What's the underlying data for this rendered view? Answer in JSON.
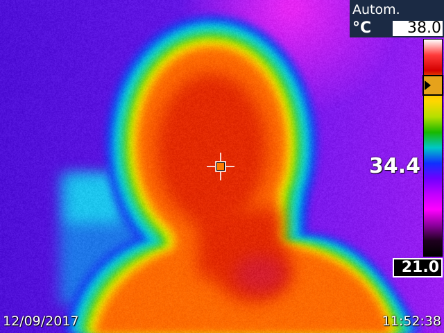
{
  "camera": {
    "mode": "Autom.",
    "unit": "°C",
    "scale_max": "38.0",
    "scale_min": "21.0",
    "spot_temperature": "34.4",
    "date": "12/09/2017",
    "time": "11:52:38"
  },
  "palette": {
    "type": "iron-rainbow",
    "colors": [
      "#ffffff",
      "#ff3b3b",
      "#d50000",
      "#ffb400",
      "#ffd700",
      "#b5e000",
      "#18b800",
      "#00c8c8",
      "#1030ff",
      "#7000ff",
      "#c000ff",
      "#ff00ff",
      "#8e00a0",
      "#200020",
      "#000000"
    ]
  },
  "scene": {
    "subject": "person-head-and-shoulders",
    "background_colors": [
      "#5a18e6",
      "#8a1ef0",
      "#b020f0"
    ],
    "warm_colors": [
      "#d82000",
      "#ff4b00",
      "#ff9b00",
      "#ffe200",
      "#b8f000",
      "#1ecf72",
      "#00e4e0"
    ]
  }
}
